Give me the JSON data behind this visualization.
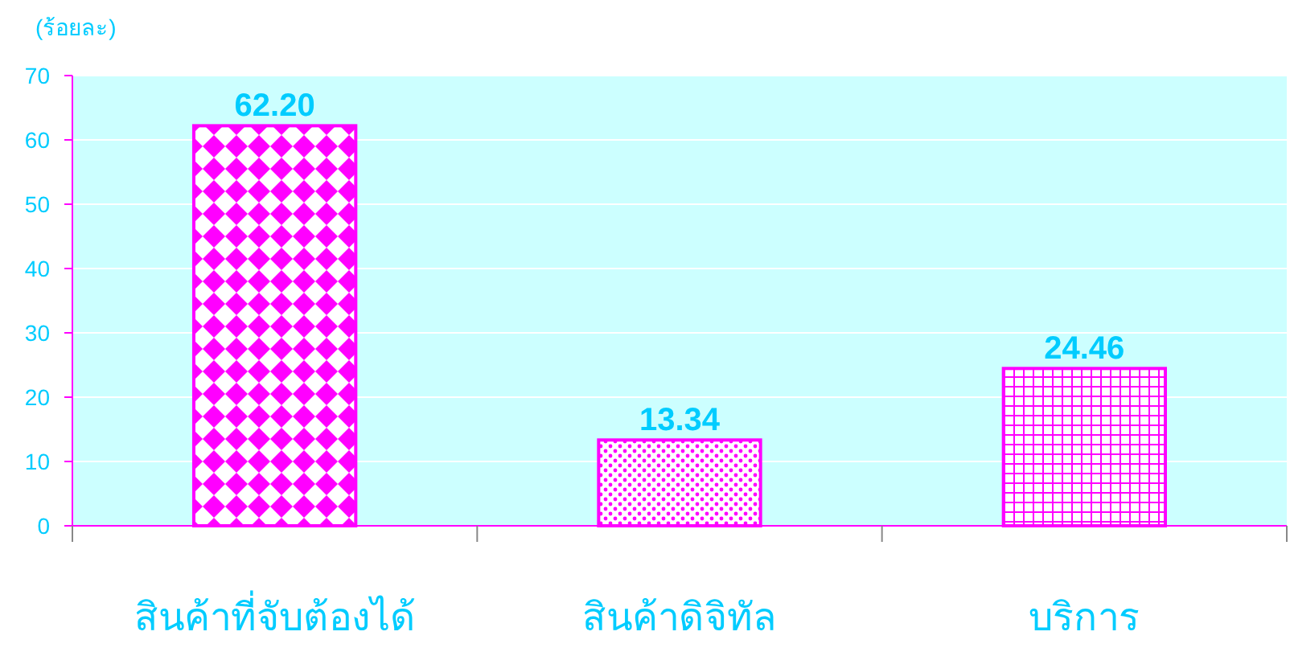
{
  "chart_data": {
    "type": "bar",
    "ylabel": "(ร้อยละ)",
    "categories": [
      "สินค้าที่จับต้องได้",
      "สินค้าดิจิทัล",
      "บริการ"
    ],
    "values": [
      62.2,
      13.34,
      24.46
    ],
    "value_labels": [
      "62.20",
      "13.34",
      "24.46"
    ],
    "color": "#ff00ff",
    "ylim": [
      0,
      70
    ],
    "yticks": [
      0,
      10,
      20,
      30,
      40,
      50,
      60,
      70
    ],
    "grid": "y"
  }
}
